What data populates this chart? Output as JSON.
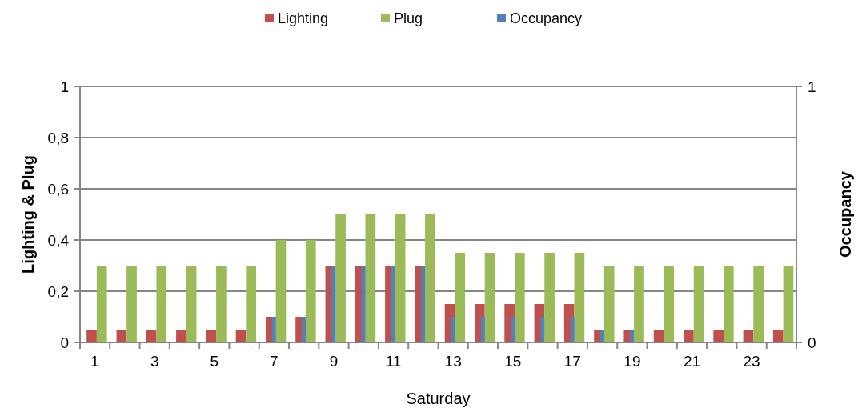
{
  "chart_data": {
    "type": "bar",
    "xlabel": "Saturday",
    "ylabel": "Lighting & Plug",
    "y2label": "Occupancy",
    "x": [
      1,
      2,
      3,
      4,
      5,
      6,
      7,
      8,
      9,
      10,
      11,
      12,
      13,
      14,
      15,
      16,
      17,
      18,
      19,
      20,
      21,
      22,
      23,
      24
    ],
    "xlim": [
      0.5,
      24.5
    ],
    "xticks": [
      1,
      3,
      5,
      7,
      9,
      11,
      13,
      15,
      17,
      19,
      21,
      23
    ],
    "series": [
      {
        "name": "Lighting",
        "color": "#c0504d",
        "values": [
          0.05,
          0.05,
          0.05,
          0.05,
          0.05,
          0.05,
          0.1,
          0.1,
          0.3,
          0.3,
          0.3,
          0.3,
          0.15,
          0.15,
          0.15,
          0.15,
          0.15,
          0.05,
          0.05,
          0.05,
          0.05,
          0.05,
          0.05,
          0.05
        ]
      },
      {
        "name": "Plug",
        "color": "#9bbb59",
        "values": [
          0.3,
          0.3,
          0.3,
          0.3,
          0.3,
          0.3,
          0.4,
          0.4,
          0.5,
          0.5,
          0.5,
          0.5,
          0.35,
          0.35,
          0.35,
          0.35,
          0.35,
          0.3,
          0.3,
          0.3,
          0.3,
          0.3,
          0.3,
          0.3
        ]
      },
      {
        "name": "Occupancy",
        "color": "#4f81bd",
        "axis": "y2",
        "values": [
          null,
          null,
          null,
          null,
          null,
          null,
          0.1,
          0.1,
          0.3,
          0.3,
          0.3,
          0.3,
          0.1,
          0.1,
          0.1,
          0.1,
          0.1,
          0.05,
          0.05,
          null,
          null,
          null,
          null,
          null
        ]
      }
    ],
    "ylim": [
      0,
      1
    ],
    "yticks": [
      0,
      {
        "value": 0.2,
        "label": "0,2"
      },
      {
        "value": 0.4,
        "label": "0,4"
      },
      {
        "value": 0.6,
        "label": "0,6"
      },
      {
        "value": 0.8,
        "label": "0,8"
      },
      1
    ],
    "y2lim": [
      0,
      1
    ],
    "y2ticks": [
      0,
      1
    ],
    "grid": "y",
    "legend": "top"
  }
}
